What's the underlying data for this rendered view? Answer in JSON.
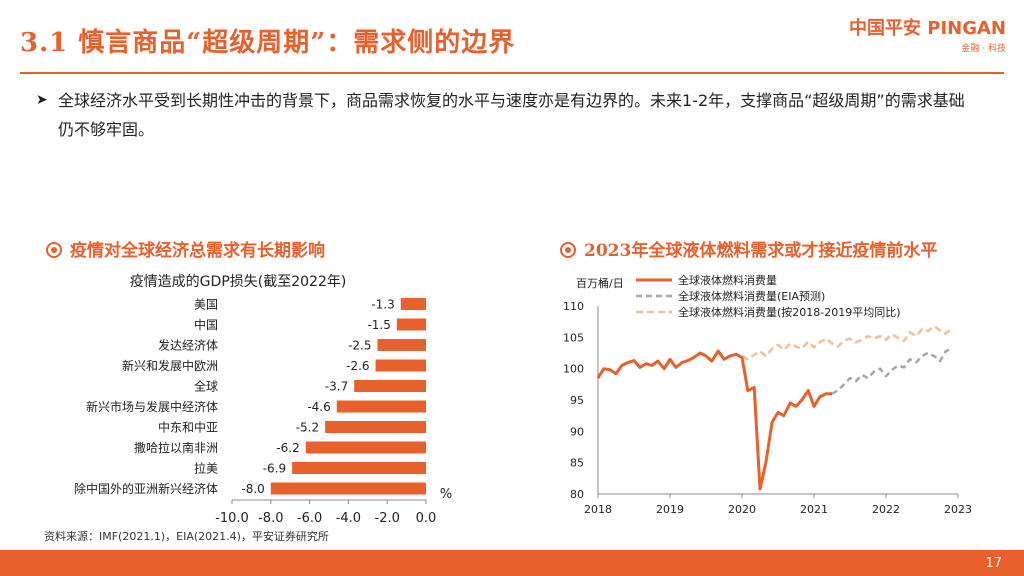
{
  "header": {
    "title": "3.1 慎言商品“超级周期”：需求侧的边界",
    "logo_main": "中国平安 PINGAN",
    "logo_sub": "金融 · 科技"
  },
  "bullet": {
    "text": "全球经济水平受到长期性冲击的背景下，商品需求恢复的水平与速度亦是有边界的。未来1-2年，支撑商品“超级周期”的需求基础仍不够牢固。"
  },
  "left_section": {
    "title": "疫情对全球经济总需求有长期影响"
  },
  "right_section": {
    "title": "2023年全球液体燃料需求或才接近疫情前水平"
  },
  "source": "资料来源：IMF(2021.1)，EIA(2021.4)，平安证券研究所",
  "footer": {
    "page": "17"
  },
  "colors": {
    "accent": "#e8602c",
    "gray_dash": "#a6a6a6",
    "light_orange": "#f5be9a"
  },
  "chart_data": [
    {
      "type": "bar",
      "orientation": "horizontal",
      "title": "疫情造成的GDP损失(截至2022年)",
      "categories": [
        "美国",
        "中国",
        "发达经济体",
        "新兴和发展中欧洲",
        "全球",
        "新兴市场与发展中经济体",
        "中东和中亚",
        "撒哈拉以南非洲",
        "拉美",
        "除中国外的亚洲新兴经济体"
      ],
      "values": [
        -1.3,
        -1.5,
        -2.5,
        -2.6,
        -3.7,
        -4.6,
        -5.2,
        -6.2,
        -6.9,
        -8.0
      ],
      "value_labels": [
        "-1.3",
        "-1.5",
        "-2.5",
        "-2.6",
        "-3.7",
        "-4.6",
        "-5.2",
        "-6.2",
        "-6.9",
        "-8.0"
      ],
      "xlim": [
        -10,
        0
      ],
      "xticks": [
        "-10.0",
        "-8.0",
        "-6.0",
        "-4.0",
        "-2.0",
        "0.0"
      ],
      "unit_label": "%",
      "color": "#e8602c"
    },
    {
      "type": "line",
      "ylabel": "百万桶/日",
      "ylim": [
        80,
        110
      ],
      "yticks": [
        "80",
        "85",
        "90",
        "95",
        "100",
        "105",
        "110"
      ],
      "xlim": [
        2018,
        2023
      ],
      "xticks": [
        "2018",
        "2019",
        "2020",
        "2021",
        "2022",
        "2023"
      ],
      "series": [
        {
          "name": "全球液体燃料消费量",
          "style": "solid",
          "color": "#e8602c",
          "x": [
            2018.0,
            2018.08,
            2018.17,
            2018.25,
            2018.33,
            2018.42,
            2018.5,
            2018.58,
            2018.67,
            2018.75,
            2018.83,
            2018.92,
            2019.0,
            2019.08,
            2019.17,
            2019.25,
            2019.33,
            2019.42,
            2019.5,
            2019.58,
            2019.67,
            2019.75,
            2019.83,
            2019.92,
            2020.0,
            2020.08,
            2020.17,
            2020.25,
            2020.33,
            2020.42,
            2020.5,
            2020.58,
            2020.67,
            2020.75,
            2020.83,
            2020.92,
            2021.0,
            2021.08,
            2021.17,
            2021.25
          ],
          "y": [
            98.5,
            100.0,
            99.8,
            99.2,
            100.5,
            101.0,
            101.3,
            100.2,
            100.8,
            100.5,
            101.2,
            100.0,
            101.5,
            100.2,
            101.0,
            101.3,
            101.8,
            102.5,
            102.0,
            101.2,
            102.8,
            101.5,
            102.0,
            102.3,
            101.8,
            96.5,
            97.0,
            80.8,
            85.0,
            91.5,
            93.0,
            92.5,
            94.5,
            94.0,
            95.0,
            96.5,
            94.0,
            95.5,
            96.0,
            96.0
          ]
        },
        {
          "name": "全球液体燃料消费量(EIA预测)",
          "style": "dashed",
          "color": "#a6a6a6",
          "x": [
            2021.25,
            2021.33,
            2021.42,
            2021.5,
            2021.58,
            2021.67,
            2021.75,
            2021.83,
            2021.92,
            2022.0,
            2022.08,
            2022.17,
            2022.25,
            2022.33,
            2022.42,
            2022.5,
            2022.58,
            2022.67,
            2022.75,
            2022.83,
            2022.92
          ],
          "y": [
            96.0,
            96.5,
            97.5,
            98.5,
            98.0,
            99.0,
            98.5,
            99.5,
            100.0,
            98.8,
            99.8,
            100.5,
            100.2,
            101.5,
            101.0,
            102.0,
            102.5,
            102.0,
            101.2,
            102.8,
            103.2
          ]
        },
        {
          "name": "全球液体燃料消费量(按2018-2019平均同比)",
          "style": "dashed",
          "color": "#f5be9a",
          "x": [
            2020.0,
            2020.08,
            2020.17,
            2020.25,
            2020.33,
            2020.42,
            2020.5,
            2020.58,
            2020.67,
            2020.75,
            2020.83,
            2020.92,
            2021.0,
            2021.08,
            2021.17,
            2021.25,
            2021.33,
            2021.42,
            2021.5,
            2021.58,
            2021.67,
            2021.75,
            2021.83,
            2021.92,
            2022.0,
            2022.08,
            2022.17,
            2022.25,
            2022.33,
            2022.42,
            2022.5,
            2022.58,
            2022.67,
            2022.75,
            2022.83,
            2022.92
          ],
          "y": [
            102.0,
            101.5,
            102.2,
            102.8,
            102.0,
            103.2,
            103.8,
            103.0,
            104.0,
            103.5,
            103.2,
            104.3,
            103.4,
            104.2,
            104.8,
            104.0,
            103.5,
            104.5,
            104.8,
            104.2,
            104.6,
            105.2,
            104.8,
            105.2,
            104.6,
            105.5,
            104.9,
            104.4,
            105.8,
            105.2,
            106.3,
            106.0,
            106.8,
            106.1,
            105.6,
            106.5
          ]
        }
      ]
    }
  ]
}
